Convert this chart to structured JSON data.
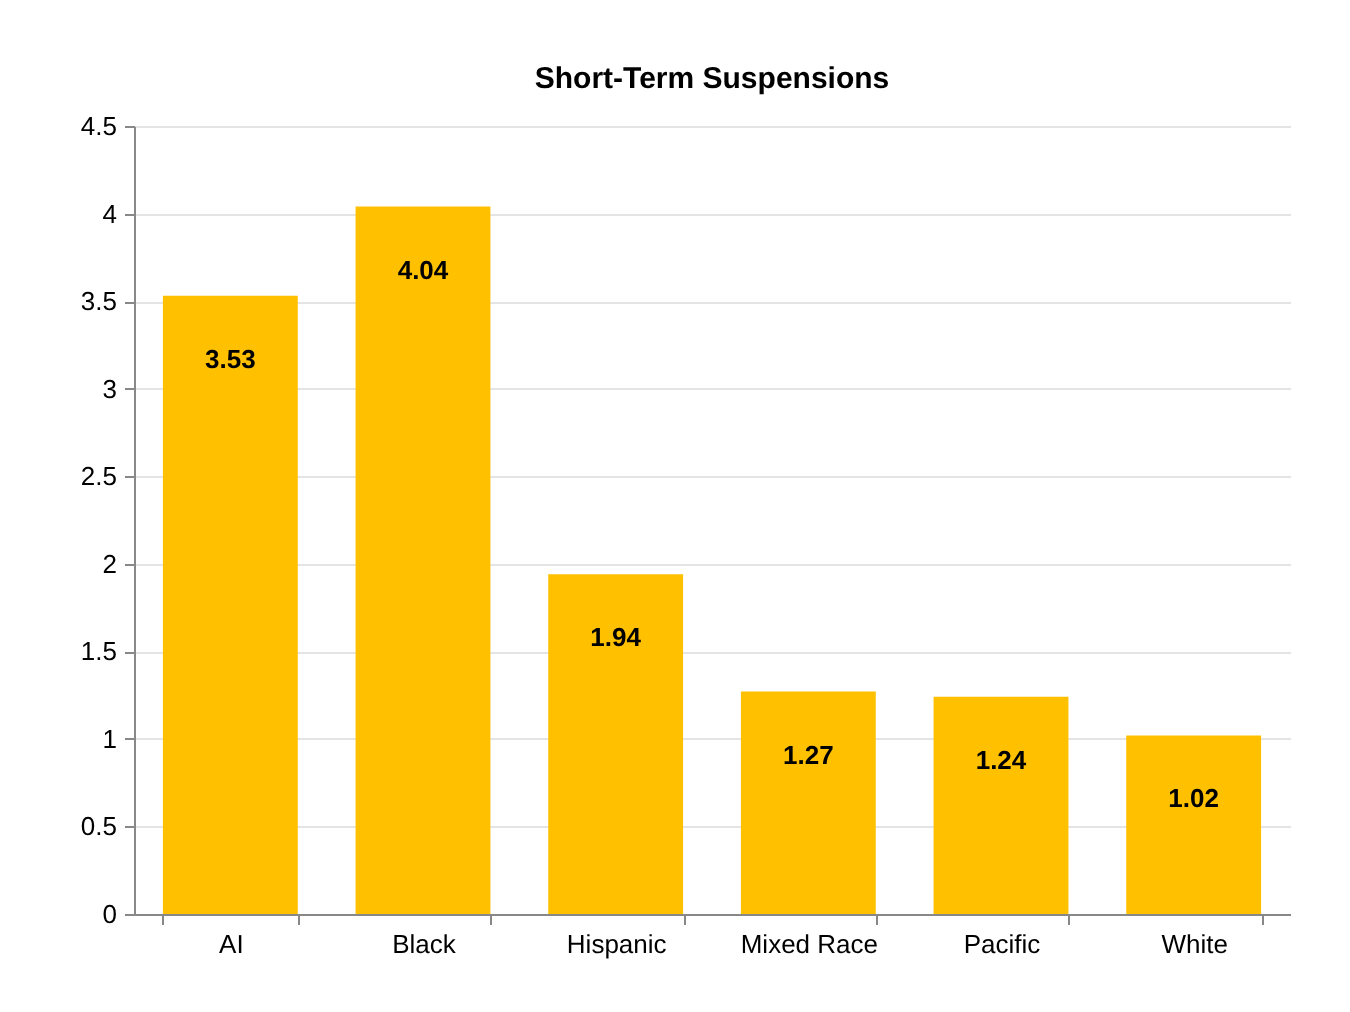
{
  "chart_data": {
    "type": "bar",
    "title": "Short-Term Suspensions",
    "categories": [
      "AI",
      "Black",
      "Hispanic",
      "Mixed Race",
      "Pacific",
      "White"
    ],
    "values": [
      3.53,
      4.04,
      1.94,
      1.27,
      1.24,
      1.02
    ],
    "color": "#ffc000",
    "ylim": [
      0,
      4.5
    ],
    "yticks": [
      0,
      0.5,
      1,
      1.5,
      2,
      2.5,
      3,
      3.5,
      4,
      4.5
    ],
    "grid": "y",
    "data_labels": true
  }
}
